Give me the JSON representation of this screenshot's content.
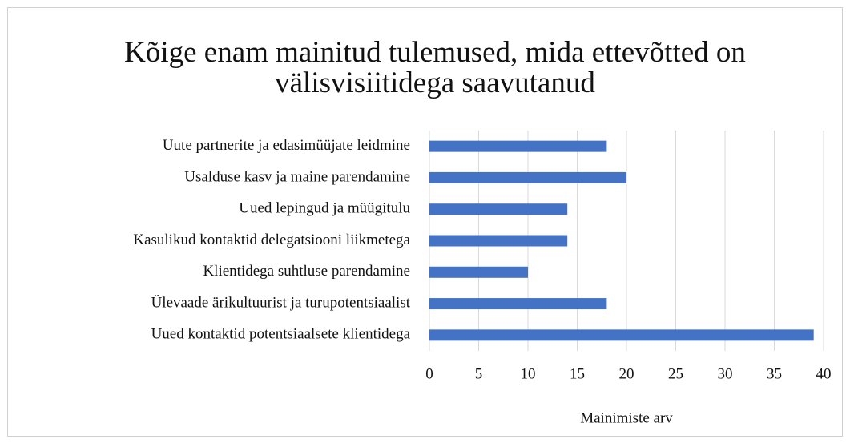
{
  "chart_data": {
    "type": "hbar",
    "title": "Kõige enam mainitud tulemused, mida ettevõtted on välisvisiitidega saavutanud",
    "x_label": "Mainimiste arv",
    "categories": [
      "Uute partnerite ja edasimüüjate leidmine",
      "Usalduse kasv ja maine parendamine",
      "Uued lepingud ja müügitulu",
      "Kasulikud kontaktid delegatsiooni liikmetega",
      "Klientidega suhtluse parendamine",
      "Ülevaade ärikultuurist ja turupotentsiaalist",
      "Uued kontaktid potentsiaalsete klientidega"
    ],
    "values": [
      18,
      20,
      14,
      14,
      10,
      18,
      39
    ],
    "color": "#4472c4",
    "xlim": [
      0,
      40
    ],
    "xticks": [
      0,
      5,
      10,
      15,
      20,
      25,
      30,
      35,
      40
    ],
    "grid": true
  }
}
